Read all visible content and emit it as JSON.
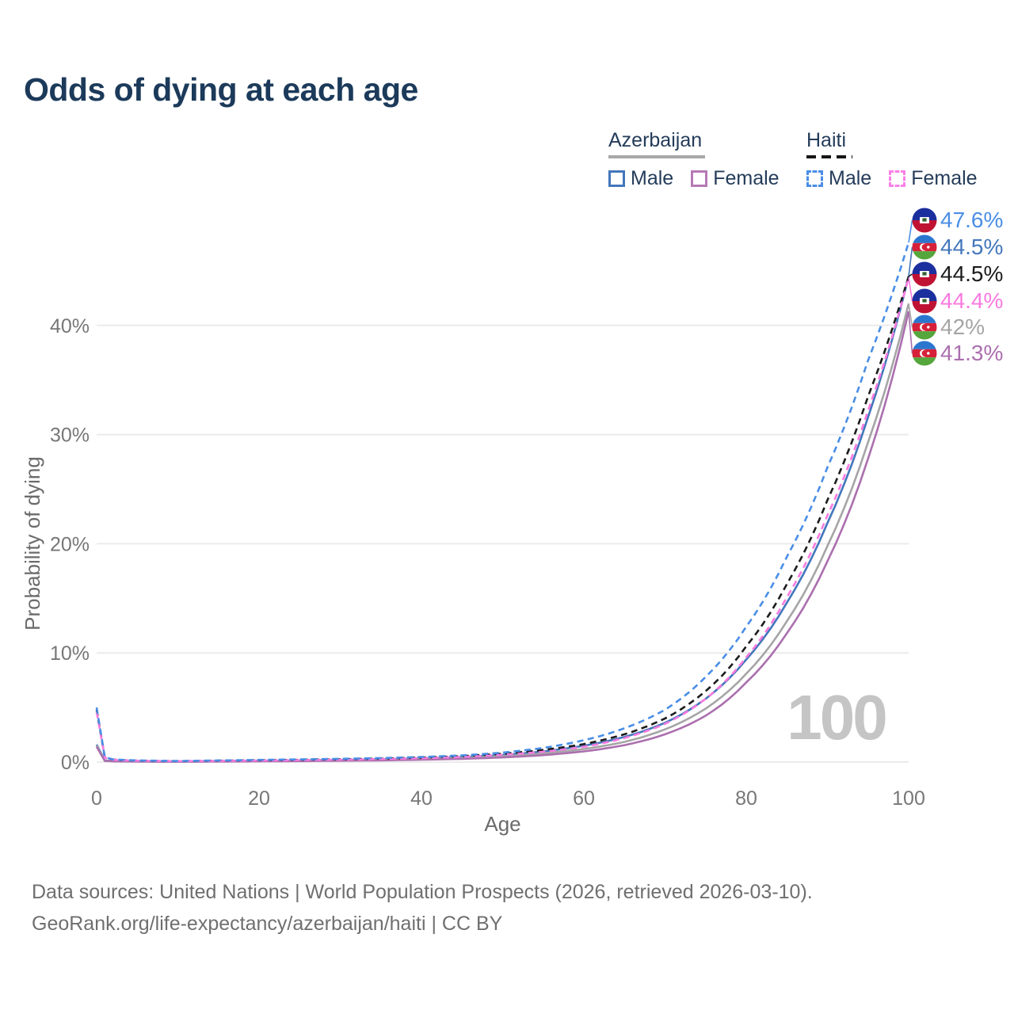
{
  "title": "Odds of dying at each age",
  "legend": {
    "groups": [
      {
        "label": "Azerbaijan",
        "line_style": "solid",
        "line_color": "#a8a8a8",
        "items": [
          {
            "label": "Male",
            "color": "#4377bb",
            "dashed": false
          },
          {
            "label": "Female",
            "color": "#b57ab5",
            "dashed": false
          }
        ]
      },
      {
        "label": "Haiti",
        "line_style": "dashed",
        "line_color": "#161616",
        "items": [
          {
            "label": "Male",
            "color": "#4a8ee6",
            "dashed": true
          },
          {
            "label": "Female",
            "color": "#fb80e8",
            "dashed": true
          }
        ]
      }
    ]
  },
  "chart_data": {
    "type": "line",
    "title": "Odds of dying at each age",
    "xlabel": "Age",
    "ylabel": "Probability of dying",
    "xlim": [
      0,
      100
    ],
    "ylim": [
      0,
      50
    ],
    "grid": "horizontal",
    "legend_position": "top-right",
    "watermark": "100",
    "x_ticks": [
      {
        "value": 0,
        "label": "0"
      },
      {
        "value": 20,
        "label": "20"
      },
      {
        "value": 40,
        "label": "40"
      },
      {
        "value": 60,
        "label": "60"
      },
      {
        "value": 80,
        "label": "80"
      },
      {
        "value": 100,
        "label": "100"
      }
    ],
    "y_ticks": [
      {
        "value": 0,
        "label": "0%"
      },
      {
        "value": 10,
        "label": "10%"
      },
      {
        "value": 20,
        "label": "20%"
      },
      {
        "value": 30,
        "label": "30%"
      },
      {
        "value": 40,
        "label": "40%"
      }
    ],
    "x": [
      0,
      1,
      2,
      5,
      10,
      15,
      20,
      25,
      30,
      35,
      40,
      45,
      50,
      55,
      60,
      65,
      70,
      75,
      80,
      85,
      90,
      95,
      100
    ],
    "series": [
      {
        "name": "Azerbaijan Male",
        "country": "Azerbaijan",
        "sex": "Male",
        "flag": "azerbaijan",
        "color": "#4377bb",
        "dashed": false,
        "end_label": "44.5%",
        "values": [
          1.6,
          0.14,
          0.09,
          0.06,
          0.05,
          0.08,
          0.12,
          0.15,
          0.19,
          0.26,
          0.35,
          0.47,
          0.66,
          0.98,
          1.5,
          2.3,
          3.6,
          5.8,
          9.4,
          14.6,
          21.9,
          31.6,
          44.5
        ]
      },
      {
        "name": "Azerbaijan Both sexes",
        "country": "Azerbaijan",
        "sex": "Both",
        "flag": "azerbaijan",
        "color": "#a5a5a5",
        "dashed": false,
        "end_label": "42%",
        "values": [
          1.5,
          0.12,
          0.08,
          0.05,
          0.04,
          0.06,
          0.09,
          0.12,
          0.15,
          0.2,
          0.28,
          0.38,
          0.54,
          0.8,
          1.2,
          1.85,
          3.0,
          4.9,
          8.1,
          12.9,
          19.8,
          29.3,
          42.0
        ]
      },
      {
        "name": "Azerbaijan Female",
        "country": "Azerbaijan",
        "sex": "Female",
        "flag": "azerbaijan",
        "color": "#ab6fae",
        "dashed": false,
        "end_label": "41.3%",
        "values": [
          1.4,
          0.11,
          0.07,
          0.05,
          0.04,
          0.05,
          0.07,
          0.09,
          0.12,
          0.16,
          0.22,
          0.3,
          0.43,
          0.64,
          0.98,
          1.55,
          2.55,
          4.25,
          7.3,
          11.8,
          18.4,
          27.8,
          41.3
        ]
      },
      {
        "name": "Haiti Both sexes",
        "country": "Haiti",
        "sex": "Both",
        "flag": "haiti",
        "color": "#1c1c1c",
        "dashed": true,
        "end_label": "44.5%",
        "values": [
          4.8,
          0.42,
          0.23,
          0.13,
          0.09,
          0.13,
          0.17,
          0.21,
          0.26,
          0.32,
          0.41,
          0.55,
          0.77,
          1.12,
          1.65,
          2.55,
          4.0,
          6.5,
          10.6,
          16.3,
          24.0,
          33.5,
          44.5
        ]
      },
      {
        "name": "Haiti Female",
        "country": "Haiti",
        "sex": "Female",
        "flag": "haiti",
        "color": "#f97ae0",
        "dashed": true,
        "end_label": "44.4%",
        "values": [
          4.6,
          0.4,
          0.21,
          0.12,
          0.08,
          0.11,
          0.14,
          0.18,
          0.22,
          0.28,
          0.35,
          0.47,
          0.67,
          0.95,
          1.4,
          2.2,
          3.5,
          5.8,
          9.6,
          15.1,
          22.6,
          32.2,
          44.4
        ]
      },
      {
        "name": "Haiti Male",
        "country": "Haiti",
        "sex": "Male",
        "flag": "haiti",
        "color": "#4a8ee6",
        "dashed": true,
        "end_label": "47.6%",
        "values": [
          5.0,
          0.45,
          0.25,
          0.15,
          0.1,
          0.15,
          0.2,
          0.25,
          0.3,
          0.37,
          0.47,
          0.62,
          0.87,
          1.3,
          2.0,
          3.1,
          4.8,
          7.8,
          12.4,
          18.8,
          27.0,
          36.8,
          47.6
        ]
      }
    ]
  },
  "footer": {
    "line1": "Data sources: United Nations | World Population Prospects (2026, retrieved 2026-03-10).",
    "line2": "GeoRank.org/life-expectancy/azerbaijan/haiti | CC BY"
  }
}
